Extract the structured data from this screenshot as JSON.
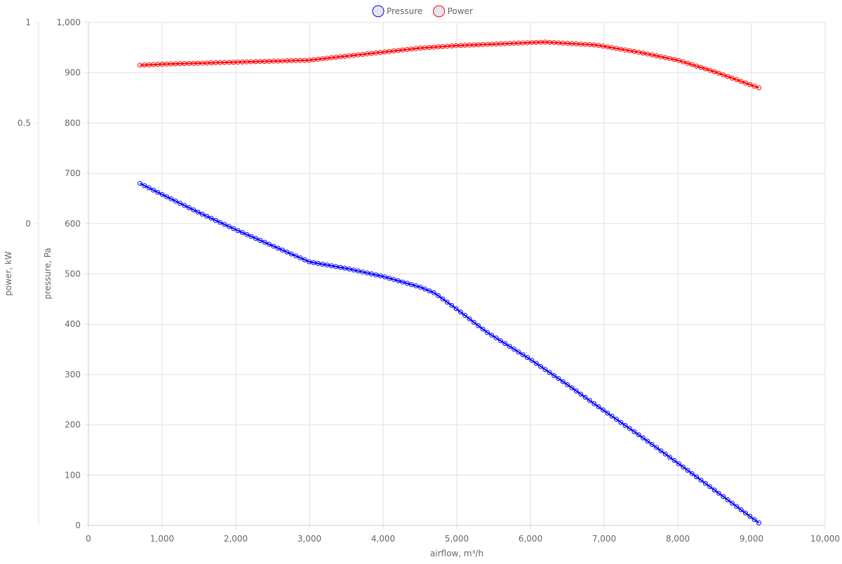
{
  "chart_data": {
    "type": "line",
    "legend": {
      "position": "top",
      "items": [
        {
          "name": "Pressure",
          "color": "#0000ff",
          "fill": "#e6e6ef"
        },
        {
          "name": "Power",
          "color": "#ff0000",
          "fill": "#e6e6ef"
        }
      ]
    },
    "grid": true,
    "xlabel": "airflow, m³/h",
    "x_axis": {
      "min": 0,
      "max": 10000,
      "ticks": [
        0,
        1000,
        2000,
        3000,
        4000,
        5000,
        6000,
        7000,
        8000,
        9000,
        10000
      ],
      "tick_labels": [
        "0",
        "1,000",
        "2,000",
        "3,000",
        "4,000",
        "5,000",
        "6,000",
        "7,000",
        "8,000",
        "9,000",
        "10,000"
      ]
    },
    "y_axes": [
      {
        "id": "pressure",
        "label": "pressure, Pa",
        "min": 0,
        "max": 1000,
        "ticks": [
          0,
          100,
          200,
          300,
          400,
          500,
          600,
          700,
          800,
          900,
          1000
        ],
        "tick_labels": [
          "0",
          "100",
          "200",
          "300",
          "400",
          "500",
          "600",
          "700",
          "800",
          "900",
          "1,000"
        ]
      },
      {
        "id": "power",
        "label": "power, kW",
        "ticks": [
          1,
          0.5,
          0
        ],
        "tick_labels": [
          "1",
          "0.5",
          "0"
        ]
      }
    ],
    "series": [
      {
        "name": "Pressure",
        "color": "#0000ff",
        "axis": "pressure",
        "anchors": [
          [
            700,
            680
          ],
          [
            1000,
            658
          ],
          [
            1500,
            622
          ],
          [
            2000,
            588
          ],
          [
            2500,
            556
          ],
          [
            3000,
            524
          ],
          [
            3500,
            511
          ],
          [
            4000,
            495
          ],
          [
            4500,
            474
          ],
          [
            4700,
            462
          ],
          [
            5000,
            430
          ],
          [
            5400,
            385
          ],
          [
            6000,
            330
          ],
          [
            6500,
            280
          ],
          [
            7000,
            228
          ],
          [
            7500,
            177
          ],
          [
            8000,
            124
          ],
          [
            8500,
            70
          ],
          [
            9100,
            5
          ]
        ]
      },
      {
        "name": "Power",
        "color": "#ff0000",
        "axis": "pressure",
        "anchors": [
          [
            700,
            915
          ],
          [
            1000,
            917
          ],
          [
            2000,
            921
          ],
          [
            3000,
            925
          ],
          [
            3500,
            933
          ],
          [
            4000,
            941
          ],
          [
            4500,
            949
          ],
          [
            5000,
            954
          ],
          [
            5500,
            957
          ],
          [
            6200,
            961
          ],
          [
            6900,
            955
          ],
          [
            7500,
            940
          ],
          [
            8000,
            925
          ],
          [
            8500,
            902
          ],
          [
            9100,
            870
          ]
        ]
      }
    ]
  }
}
